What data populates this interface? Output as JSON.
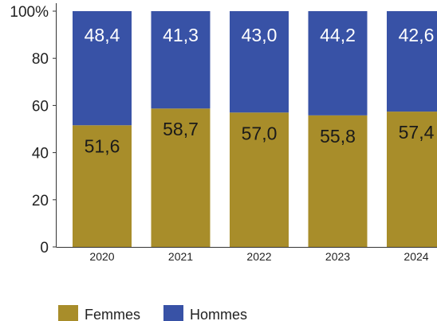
{
  "chart_data": {
    "type": "bar",
    "stacked": true,
    "categories": [
      "2020",
      "2021",
      "2022",
      "2023",
      "2024"
    ],
    "series": [
      {
        "name": "Femmes",
        "values": [
          51.6,
          58.7,
          57.0,
          55.8,
          57.4
        ],
        "labels": [
          "51,6",
          "58,7",
          "57,0",
          "55,8",
          "57,4"
        ],
        "color": "#a88d2a"
      },
      {
        "name": "Hommes",
        "values": [
          48.4,
          41.3,
          43.0,
          44.2,
          42.6
        ],
        "labels": [
          "48,4",
          "41,3",
          "43,0",
          "44,2",
          "42,6"
        ],
        "color": "#3852a6"
      }
    ],
    "y_ticks": [
      "0",
      "20",
      "40",
      "60",
      "80",
      "100%"
    ],
    "ylim": [
      0,
      100
    ],
    "grid": false,
    "legend": "bottom-left",
    "title": "",
    "xlabel": "",
    "ylabel": ""
  }
}
